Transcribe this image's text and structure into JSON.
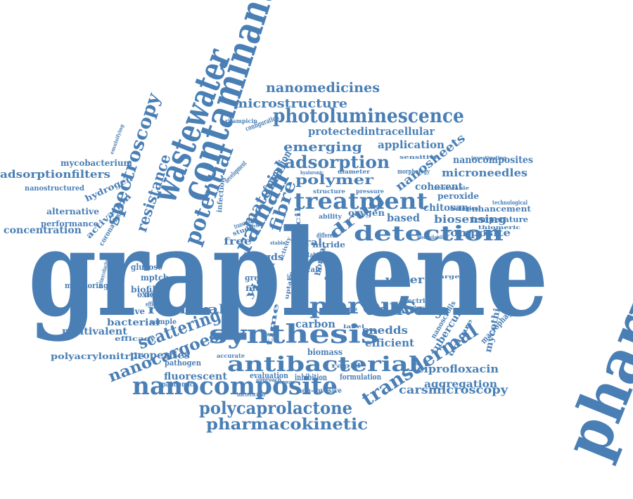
{
  "color": "#4a7fb5",
  "words": [
    "graphene",
    "pharmaceutical",
    "contaminant",
    "wastewater",
    "treatment",
    "photoluminescence",
    "nanocomposite",
    "antibacterial",
    "synthesis",
    "porous",
    "detection",
    "transdermal",
    "potential",
    "raman",
    "spectroscopy",
    "adsorption",
    "nanomedicines",
    "microstructure",
    "polycaprolactone",
    "pharmacokinetic",
    "scattering",
    "nanocargoes",
    "removal",
    "delivery",
    "polymer",
    "emerging",
    "protected",
    "intracellular",
    "application",
    "nanocomposites",
    "microneedles",
    "nanosheets",
    "coherent",
    "peroxide",
    "chitosan",
    "biosensing",
    "composite",
    "adsorptionfilters",
    "mycobacterium",
    "hydrogen",
    "activation",
    "alternative",
    "performance",
    "concentration",
    "nanostructured",
    "resistance",
    "fibre",
    "material",
    "formation",
    "drug",
    "based",
    "oxygen",
    "ability",
    "free",
    "water",
    "snedds",
    "efficient",
    "ciprofloxacin",
    "aggregation",
    "carsmicroscopy",
    "mycothione",
    "tuberculosis",
    "macrophage",
    "nanoscrolls",
    "carbon",
    "biomass",
    "glucose",
    "mptch",
    "biofilms",
    "oxidant",
    "monitoring",
    "reactive",
    "bacterial",
    "multivalent",
    "polyacrylonitrile",
    "properties",
    "pathogen",
    "fluorescent",
    "pandemic",
    "evaluation",
    "inhibition",
    "formulation",
    "bactericidal",
    "non-invasive",
    "gqds",
    "viral",
    "nitride",
    "boron",
    "scale",
    "state",
    "yield",
    "green",
    "filter",
    "facile",
    "selective",
    "time",
    "functionalized",
    "enhancement",
    "temperature",
    "thiomeric",
    "morphology",
    "sensitive",
    "structure",
    "diameter",
    "pressure",
    "hyaluronic",
    "configuration",
    "rifampicin",
    "infection",
    "development",
    "coronavirus",
    "antimycobacterial",
    "efficacy",
    "sample",
    "biosensor",
    "efficiencies",
    "accurate",
    "approach",
    "rapid",
    "metal",
    "system",
    "electrical",
    "carbamazepine",
    "technological",
    "investigating",
    "unique",
    "different",
    "uptake",
    "surface",
    "activity",
    "studies",
    "transmission",
    "renewable",
    "target",
    "microwave",
    "bioavailability",
    "emulsifying",
    "biological",
    "label",
    "stable",
    "mixture"
  ]
}
